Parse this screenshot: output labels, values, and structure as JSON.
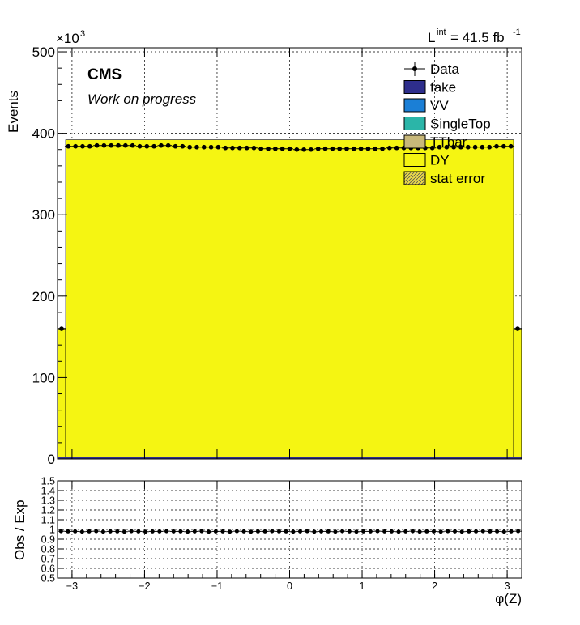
{
  "lumi": {
    "prefix": "L",
    "sup": "int",
    "value": " = 41.5 fb",
    "unit_sup": "-1"
  },
  "cms_label": "CMS",
  "cms_sublabel": "Work on progress",
  "colors": {
    "DY": "#f5f512",
    "TTbar": "#c8b87a",
    "SingleTop": "#2bb5a8",
    "VV": "#1b7fd6",
    "fake": "#2e2e8c",
    "data": "#000000"
  },
  "chart_data": [
    {
      "type": "bar",
      "panel": "main",
      "ylabel": "Events",
      "y_multiplier": "×10",
      "y_multiplier_exp": "3",
      "ylim": [
        0,
        505
      ],
      "yticks": [
        0,
        100,
        200,
        300,
        400,
        500
      ],
      "xlim": [
        -3.2,
        3.2
      ],
      "x_edges": [
        -3.2,
        3.1,
        3.2
      ],
      "grid": true,
      "legend_position": "top-right",
      "legend": [
        {
          "label": "Data",
          "kind": "marker"
        },
        {
          "label": "fake",
          "kind": "fill",
          "color": "#2e2e8c"
        },
        {
          "label": "VV",
          "kind": "fill",
          "color": "#1b7fd6"
        },
        {
          "label": "SingleTop",
          "kind": "fill",
          "color": "#2bb5a8"
        },
        {
          "label": "TTbar",
          "kind": "fill",
          "color": "#c8b87a"
        },
        {
          "label": "DY",
          "kind": "fill",
          "color": "#f5f512"
        },
        {
          "label": "stat error",
          "kind": "hatch"
        }
      ],
      "series": [
        {
          "name": "DY",
          "style": "stacked-fill",
          "first_last_value": 160.5,
          "inner_value": 392
        },
        {
          "name": "Data",
          "style": "markers",
          "first_last_value": 160,
          "inner_values": [
            384,
            384,
            384,
            384,
            385,
            385,
            385,
            385,
            385,
            385,
            384,
            384,
            384,
            385,
            385,
            384,
            384,
            383,
            383,
            383,
            383,
            383,
            382,
            382,
            382,
            382,
            382,
            381,
            381,
            381,
            381,
            381,
            380,
            380,
            380,
            381,
            381,
            381,
            381,
            381,
            381,
            381,
            381,
            381,
            381,
            382,
            382,
            382,
            382,
            382,
            382,
            382,
            383,
            383,
            383,
            383,
            383,
            383,
            383,
            383,
            384,
            384,
            384
          ]
        }
      ]
    },
    {
      "type": "scatter",
      "panel": "ratio",
      "ylabel": "Obs / Exp",
      "xlabel": "φ(Z)",
      "xlim": [
        -3.2,
        3.2
      ],
      "xticks": [
        -3,
        -2,
        -1,
        0,
        1,
        2,
        3
      ],
      "xtick_labels": [
        "−3",
        "−2",
        "−1",
        "0",
        "1",
        "2",
        "3"
      ],
      "ylim": [
        0.5,
        1.5
      ],
      "yticks": [
        0.5,
        0.6,
        0.7,
        0.8,
        0.9,
        1,
        1.1,
        1.2,
        1.3,
        1.4,
        1.5
      ],
      "ytick_labels": [
        "0.5",
        "0.6",
        "0.7",
        "0.8",
        "0.9",
        "1",
        "1.1",
        "1.2",
        "1.3",
        "1.4",
        "1.5"
      ],
      "grid": true,
      "series": [
        {
          "name": "Obs / Exp",
          "values_summary": "approximately constant",
          "value": 0.98
        }
      ]
    }
  ]
}
